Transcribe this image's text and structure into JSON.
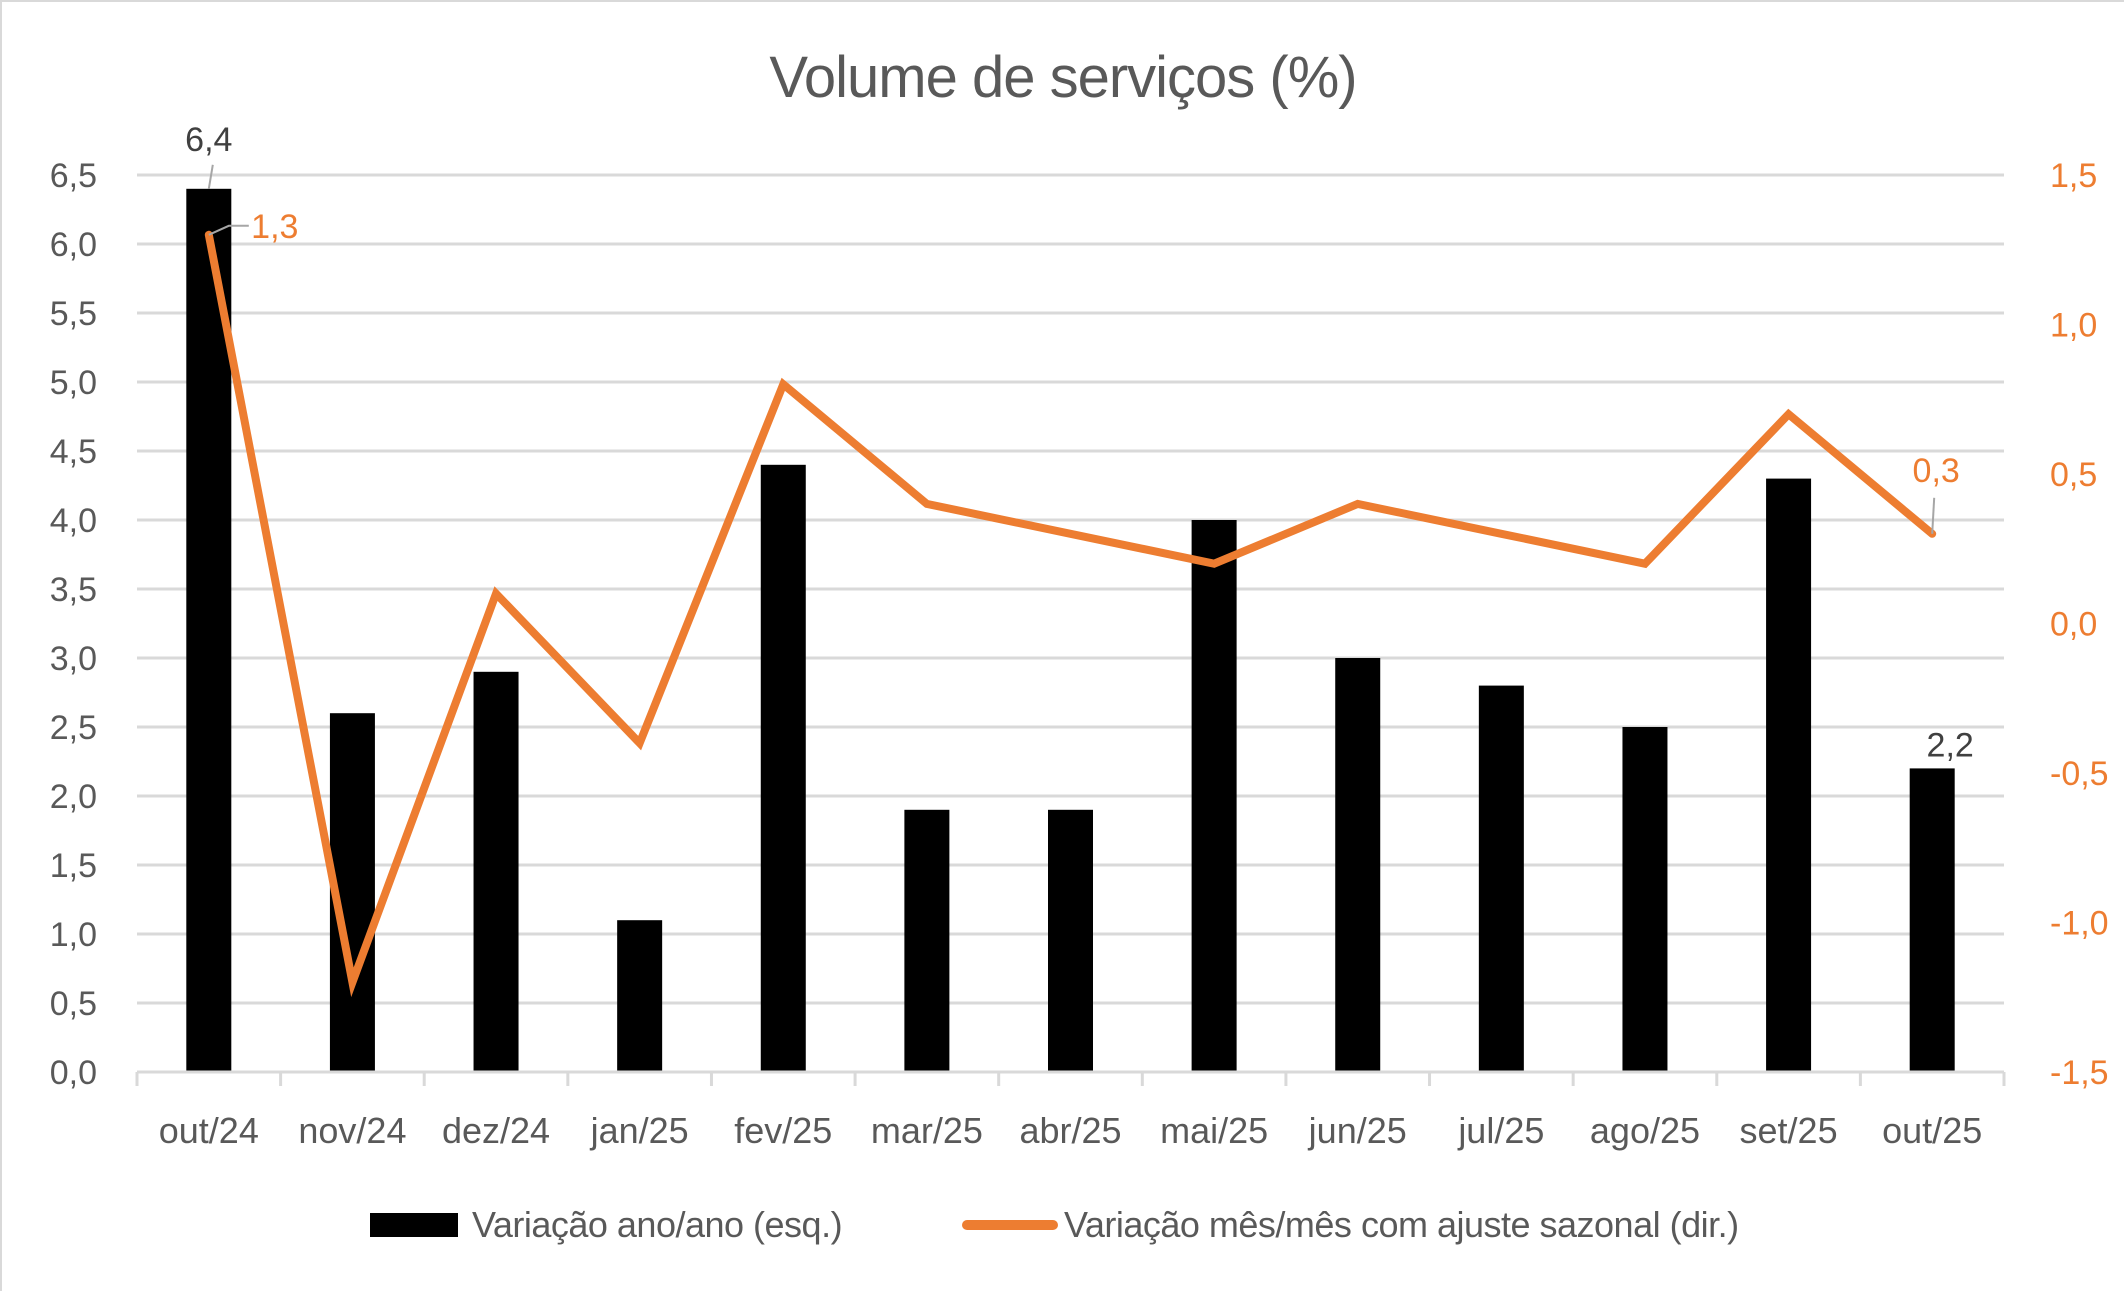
{
  "chart_data": {
    "type": "bar+line",
    "title": "Volume de serviços (%)",
    "categories": [
      "out/24",
      "nov/24",
      "dez/24",
      "jan/25",
      "fev/25",
      "mar/25",
      "abr/25",
      "mai/25",
      "jun/25",
      "jul/25",
      "ago/25",
      "set/25",
      "out/25"
    ],
    "series": [
      {
        "name": "Variação ano/ano (esq.)",
        "type": "bar",
        "axis": "left",
        "color": "#000000",
        "values": [
          6.4,
          2.6,
          2.9,
          1.1,
          4.4,
          1.9,
          1.9,
          4.0,
          3.0,
          2.8,
          2.5,
          4.3,
          2.2
        ],
        "data_labels": [
          {
            "index": 0,
            "text": "6,4"
          },
          {
            "index": 12,
            "text": "2,2"
          }
        ]
      },
      {
        "name": "Variação mês/mês com ajuste sazonal (dir.)",
        "type": "line",
        "axis": "right",
        "color": "#ED7D31",
        "values": [
          1.3,
          -1.2,
          0.1,
          -0.4,
          0.8,
          0.4,
          0.3,
          0.2,
          0.4,
          0.3,
          0.2,
          0.7,
          0.3
        ],
        "data_labels": [
          {
            "index": 0,
            "text": "1,3"
          },
          {
            "index": 12,
            "text": "0,3"
          }
        ]
      }
    ],
    "left_axis": {
      "ylim": [
        0,
        6.5
      ],
      "ticks": [
        "0,0",
        "0,5",
        "1,0",
        "1,5",
        "2,0",
        "2,5",
        "3,0",
        "3,5",
        "4,0",
        "4,5",
        "5,0",
        "5,5",
        "6,0",
        "6,5"
      ]
    },
    "right_axis": {
      "ylim": [
        -1.5,
        1.5
      ],
      "ticks": [
        "-1,5",
        "-1,0",
        "-0,5",
        "0,0",
        "0,5",
        "1,0",
        "1,5"
      ],
      "color": "#ED7D31"
    },
    "xlabel": "",
    "ylabel": "",
    "grid": true,
    "legend_position": "bottom"
  },
  "legend": {
    "bar_label": "Variação ano/ano (esq.)",
    "line_label": "Variação mês/mês com ajuste sazonal (dir.)"
  }
}
